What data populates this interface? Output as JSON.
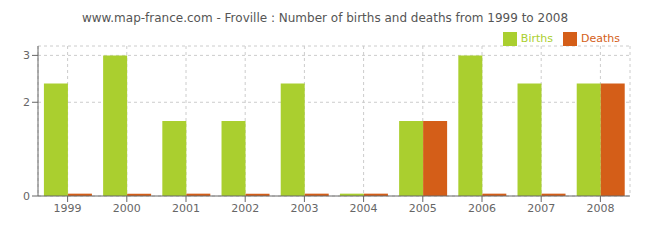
{
  "chart_data": {
    "type": "bar",
    "title": "www.map-france.com - Froville : Number of births and deaths from 1999 to 2008",
    "categories": [
      "1999",
      "2000",
      "2001",
      "2002",
      "2003",
      "2004",
      "2005",
      "2006",
      "2007",
      "2008"
    ],
    "series": [
      {
        "name": "Births",
        "color": "#aacf2f",
        "values": [
          2.4,
          3.0,
          1.6,
          1.6,
          2.4,
          0.05,
          1.6,
          3.0,
          2.4,
          2.4
        ]
      },
      {
        "name": "Deaths",
        "color": "#d45e18",
        "values": [
          0.05,
          0.05,
          0.05,
          0.05,
          0.05,
          0.05,
          1.6,
          0.05,
          0.05,
          2.4
        ]
      }
    ],
    "ylim": [
      0,
      3.2
    ],
    "yticks": [
      0,
      2,
      3
    ],
    "grid": true,
    "legend": "upper right"
  }
}
